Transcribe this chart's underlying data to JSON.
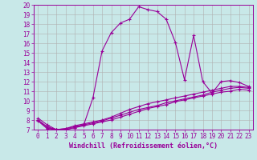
{
  "xlabel": "Windchill (Refroidissement éolien,°C)",
  "bg_color": "#c8e8e8",
  "line_color": "#990099",
  "ylim": [
    7,
    20
  ],
  "xlim": [
    -0.5,
    23.5
  ],
  "yticks": [
    7,
    8,
    9,
    10,
    11,
    12,
    13,
    14,
    15,
    16,
    17,
    18,
    19,
    20
  ],
  "xticks": [
    0,
    1,
    2,
    3,
    4,
    5,
    6,
    7,
    8,
    9,
    10,
    11,
    12,
    13,
    14,
    15,
    16,
    17,
    18,
    19,
    20,
    21,
    22,
    23
  ],
  "line1_x": [
    0,
    1,
    2,
    3,
    4,
    5,
    6,
    7,
    8,
    9,
    10,
    11,
    12,
    13,
    14,
    15,
    16,
    17,
    18,
    19,
    20,
    21,
    22,
    23
  ],
  "line1_y": [
    8.2,
    7.5,
    7.0,
    7.0,
    7.2,
    7.5,
    10.3,
    15.2,
    17.1,
    18.1,
    18.5,
    19.8,
    19.5,
    19.3,
    18.5,
    16.1,
    12.2,
    16.8,
    12.0,
    10.8,
    12.0,
    12.1,
    11.9,
    11.5
  ],
  "line2_x": [
    0,
    1,
    2,
    3,
    4,
    5,
    6,
    7,
    8,
    9,
    10,
    11,
    12,
    13,
    14,
    15,
    16,
    17,
    18,
    19,
    20,
    21,
    22,
    23
  ],
  "line2_y": [
    8.0,
    7.3,
    7.0,
    7.1,
    7.4,
    7.6,
    7.8,
    8.0,
    8.3,
    8.7,
    9.1,
    9.4,
    9.7,
    9.9,
    10.1,
    10.3,
    10.5,
    10.7,
    10.9,
    11.1,
    11.3,
    11.5,
    11.5,
    11.4
  ],
  "line3_x": [
    0,
    1,
    2,
    3,
    4,
    5,
    6,
    7,
    8,
    9,
    10,
    11,
    12,
    13,
    14,
    15,
    16,
    17,
    18,
    19,
    20,
    21,
    22,
    23
  ],
  "line3_y": [
    8.0,
    7.2,
    7.0,
    7.1,
    7.3,
    7.5,
    7.7,
    7.9,
    8.2,
    8.5,
    8.8,
    9.1,
    9.3,
    9.5,
    9.8,
    10.0,
    10.2,
    10.4,
    10.6,
    10.9,
    11.1,
    11.3,
    11.4,
    11.3
  ],
  "line4_x": [
    0,
    1,
    2,
    3,
    4,
    5,
    6,
    7,
    8,
    9,
    10,
    11,
    12,
    13,
    14,
    15,
    16,
    17,
    18,
    19,
    20,
    21,
    22,
    23
  ],
  "line4_y": [
    7.9,
    7.1,
    7.0,
    7.0,
    7.2,
    7.4,
    7.6,
    7.8,
    8.0,
    8.3,
    8.6,
    8.9,
    9.2,
    9.4,
    9.6,
    9.9,
    10.1,
    10.3,
    10.5,
    10.7,
    10.9,
    11.0,
    11.2,
    11.1
  ],
  "grid_color": "#b0b0b0",
  "tick_fontsize": 5.5,
  "label_fontsize": 6,
  "marker": "+"
}
